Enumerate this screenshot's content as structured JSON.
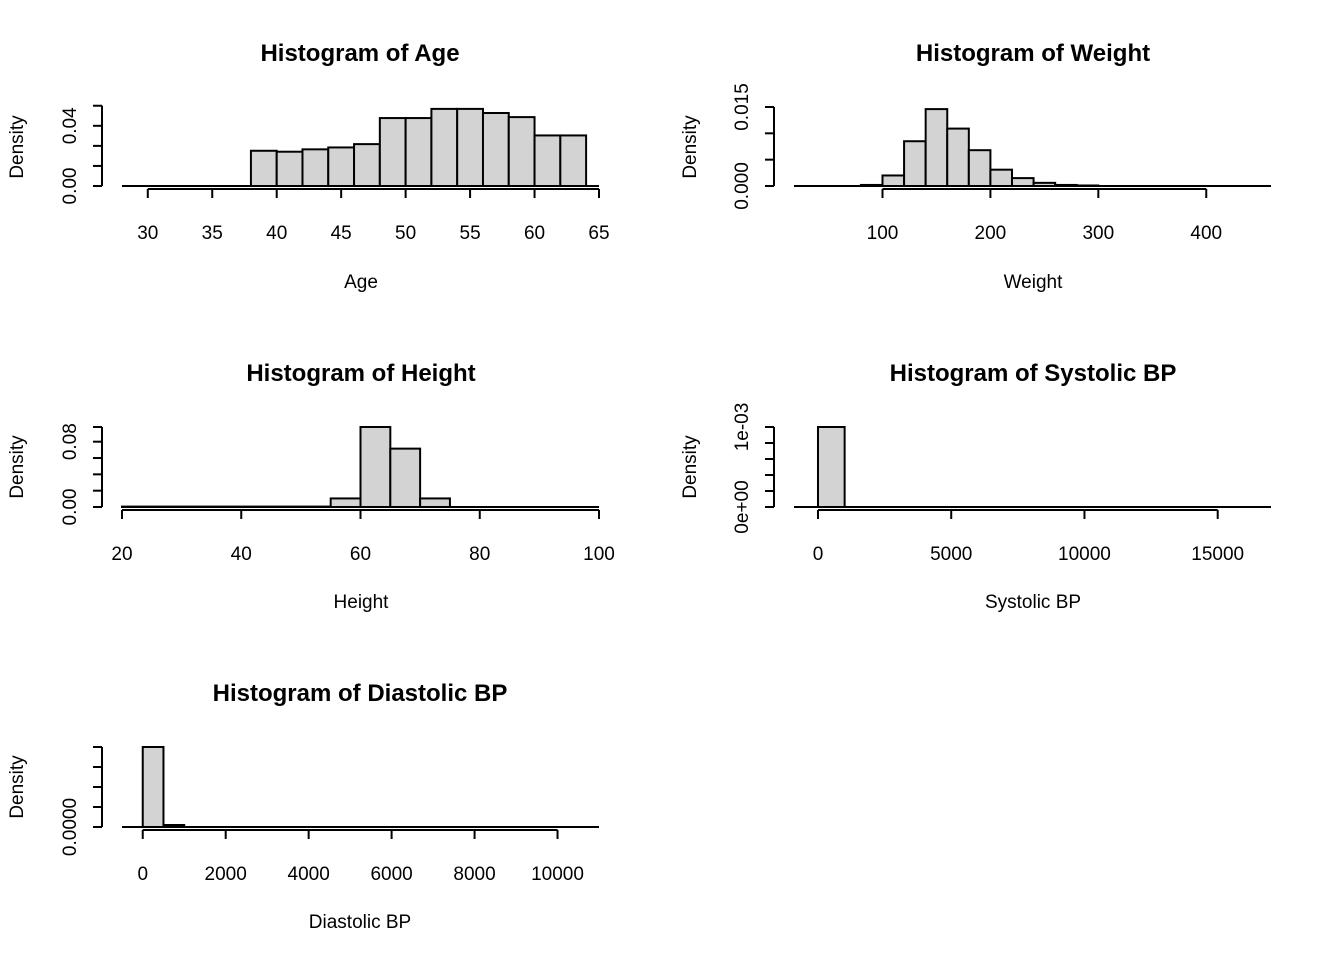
{
  "chart_data": [
    {
      "type": "bar",
      "title": "Histogram of Age",
      "xlabel": "Age",
      "ylabel": "Density",
      "xlim": [
        28,
        65
      ],
      "ylim": [
        0,
        0.05
      ],
      "x_ticks": [
        "30",
        "35",
        "40",
        "45",
        "50",
        "55",
        "60",
        "65"
      ],
      "y_ticks": [
        "0.00",
        "",
        "0.04",
        ""
      ],
      "bins": [
        {
          "x0": 30,
          "x1": 38,
          "value": 0
        },
        {
          "x0": 38,
          "x1": 40,
          "value": 0.0223
        },
        {
          "x0": 40,
          "x1": 42,
          "value": 0.0217
        },
        {
          "x0": 42,
          "x1": 44,
          "value": 0.0232
        },
        {
          "x0": 44,
          "x1": 46,
          "value": 0.0244
        },
        {
          "x0": 46,
          "x1": 48,
          "value": 0.0265
        },
        {
          "x0": 48,
          "x1": 50,
          "value": 0.043
        },
        {
          "x0": 50,
          "x1": 52,
          "value": 0.043
        },
        {
          "x0": 52,
          "x1": 54,
          "value": 0.0488
        },
        {
          "x0": 54,
          "x1": 56,
          "value": 0.0488
        },
        {
          "x0": 56,
          "x1": 58,
          "value": 0.0462
        },
        {
          "x0": 58,
          "x1": 60,
          "value": 0.0436
        },
        {
          "x0": 60,
          "x1": 62,
          "value": 0.032
        },
        {
          "x0": 62,
          "x1": 64,
          "value": 0.032
        }
      ]
    },
    {
      "type": "bar",
      "title": "Histogram of Weight",
      "xlabel": "Weight",
      "ylabel": "Density",
      "xlim": [
        18,
        460
      ],
      "ylim": [
        0,
        0.015
      ],
      "x_ticks": [
        "100",
        "200",
        "300",
        "400"
      ],
      "y_ticks": [
        "0.000",
        "",
        "",
        "0.015"
      ],
      "bins": [
        {
          "x0": 80,
          "x1": 100,
          "value": 0.0002
        },
        {
          "x0": 100,
          "x1": 120,
          "value": 0.002
        },
        {
          "x0": 120,
          "x1": 140,
          "value": 0.0085
        },
        {
          "x0": 140,
          "x1": 160,
          "value": 0.0146
        },
        {
          "x0": 160,
          "x1": 180,
          "value": 0.0109
        },
        {
          "x0": 180,
          "x1": 200,
          "value": 0.0068
        },
        {
          "x0": 200,
          "x1": 220,
          "value": 0.0031
        },
        {
          "x0": 220,
          "x1": 240,
          "value": 0.0015
        },
        {
          "x0": 240,
          "x1": 260,
          "value": 0.0006
        },
        {
          "x0": 260,
          "x1": 280,
          "value": 0.0002
        },
        {
          "x0": 280,
          "x1": 300,
          "value": 0.0001
        },
        {
          "x0": 300,
          "x1": 400,
          "value": 0
        }
      ]
    },
    {
      "type": "bar",
      "title": "Histogram of Height",
      "xlabel": "Height",
      "ylabel": "Density",
      "xlim": [
        20,
        100
      ],
      "ylim": [
        0,
        0.098
      ],
      "x_ticks": [
        "20",
        "40",
        "60",
        "80",
        "100"
      ],
      "y_ticks": [
        "0.00",
        "",
        "0.08",
        ""
      ],
      "bins": [
        {
          "x0": 20,
          "x1": 55,
          "value": 0.0005
        },
        {
          "x0": 55,
          "x1": 60,
          "value": 0.0105
        },
        {
          "x0": 60,
          "x1": 65,
          "value": 0.098
        },
        {
          "x0": 65,
          "x1": 70,
          "value": 0.0715
        },
        {
          "x0": 70,
          "x1": 75,
          "value": 0.0105
        },
        {
          "x0": 75,
          "x1": 100,
          "value": 0
        }
      ]
    },
    {
      "type": "bar",
      "title": "Histogram of Systolic BP",
      "xlabel": "Systolic BP",
      "ylabel": "Density",
      "xlim": [
        -900,
        17000
      ],
      "ylim": [
        0,
        0.001
      ],
      "x_ticks": [
        "0",
        "5000",
        "10000",
        "15000"
      ],
      "y_ticks": [
        "0e+00",
        "",
        "",
        "1e-03"
      ],
      "bins": [
        {
          "x0": 0,
          "x1": 1000,
          "value": 0.001
        },
        {
          "x0": 1000,
          "x1": 15000,
          "value": 0
        }
      ]
    },
    {
      "type": "bar",
      "title": "Histogram of Diastolic BP",
      "xlabel": "Diastolic BP",
      "ylabel": "Density",
      "xlim": [
        -500,
        11000
      ],
      "ylim": [
        0,
        0.002
      ],
      "x_ticks": [
        "0",
        "2000",
        "4000",
        "6000",
        "8000",
        "10000"
      ],
      "y_ticks": [
        "0.0000",
        "",
        "",
        ""
      ],
      "bins": [
        {
          "x0": 0,
          "x1": 500,
          "value": 0.002
        },
        {
          "x0": 500,
          "x1": 1000,
          "value": 5e-05
        },
        {
          "x0": 1000,
          "x1": 10000,
          "value": 0
        }
      ]
    }
  ]
}
